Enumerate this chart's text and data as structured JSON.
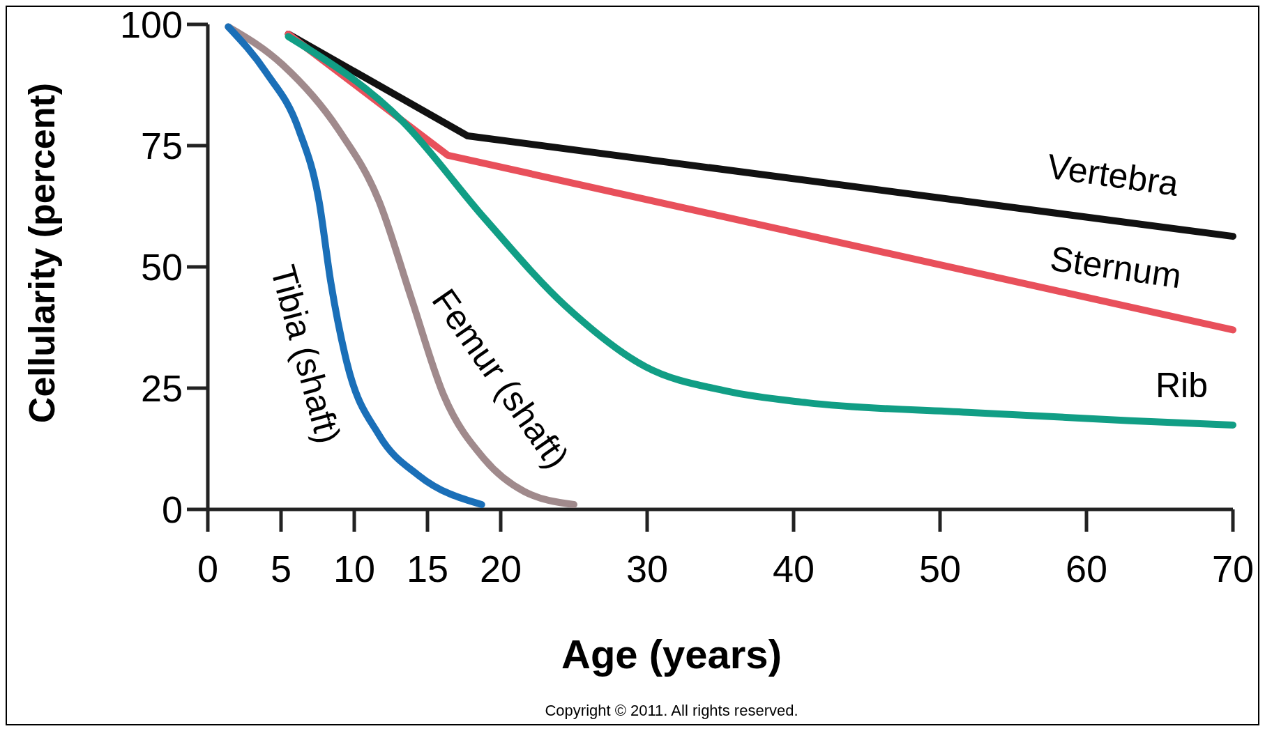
{
  "chart_data": {
    "type": "line",
    "xlabel": "Age (years)",
    "ylabel": "Cellularity (percent)",
    "xlim": [
      0,
      70
    ],
    "ylim": [
      0,
      100
    ],
    "xticks": [
      0,
      5,
      10,
      15,
      20,
      30,
      40,
      50,
      60,
      70
    ],
    "yticks": [
      0,
      25,
      50,
      75,
      100
    ],
    "grid": false,
    "marker": "none",
    "line_style": "solid",
    "series": [
      {
        "name": "Vertebra",
        "color": "#111111",
        "x": [
          5.5,
          17.75,
          70
        ],
        "values": [
          98,
          77,
          56.3
        ]
      },
      {
        "name": "Sternum",
        "color": "#e8505b",
        "x": [
          5.5,
          16.4,
          70
        ],
        "values": [
          98,
          73,
          37
        ]
      },
      {
        "name": "Rib",
        "color": "#119e85",
        "x": [
          5.5,
          13.3,
          18.9,
          24.4,
          29.9,
          35.4,
          40.9,
          51.9,
          63,
          70
        ],
        "values": [
          97.5,
          80,
          60,
          42,
          29.4,
          24.4,
          22,
          20,
          18.3,
          17.4
        ]
      },
      {
        "name": "Femur (shaft)",
        "color": "#a08a8c",
        "x": [
          1.4,
          5.1,
          8.9,
          11.7,
          13.9,
          16.1,
          18.9,
          21.6,
          25
        ],
        "values": [
          99.5,
          91.7,
          78.4,
          63.5,
          43.5,
          23.6,
          10.3,
          3.7,
          1
        ]
      },
      {
        "name": "Tibia (shaft)",
        "color": "#1a6fb8",
        "x": [
          1.4,
          4,
          6.2,
          7.6,
          8.4,
          9.5,
          11.7,
          14.4,
          18.7
        ],
        "values": [
          99.5,
          90,
          78.4,
          63.5,
          46.8,
          30.2,
          15.3,
          7,
          1
        ]
      }
    ],
    "annotations": [
      "Copyright © 2011. All rights reserved."
    ]
  }
}
